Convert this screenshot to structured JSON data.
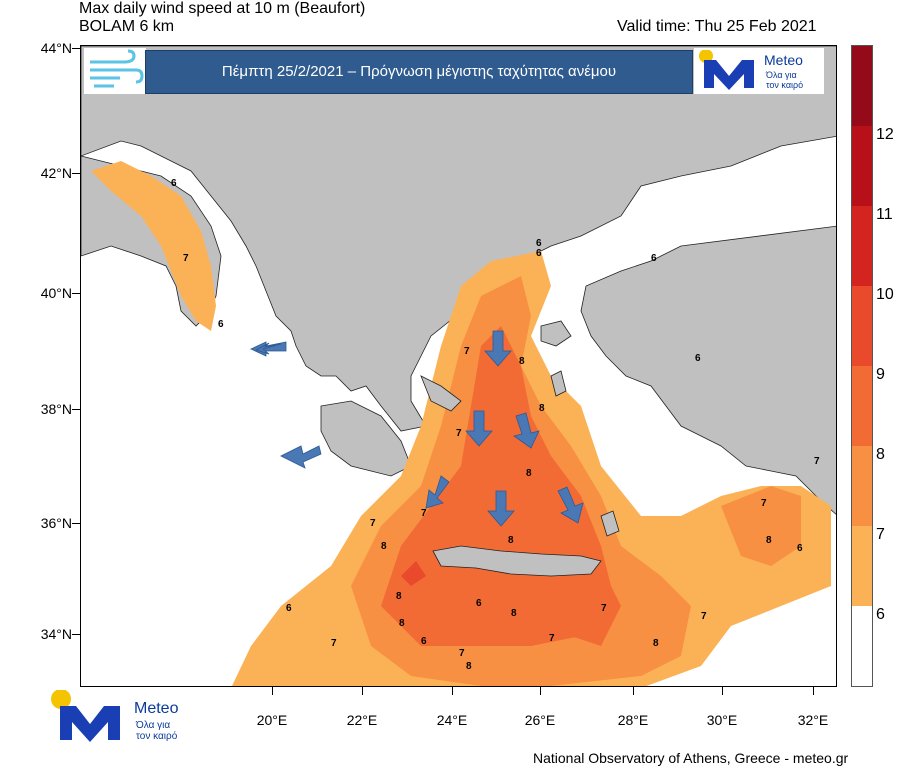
{
  "header": {
    "title_line1": "Max daily wind speed at 10 m (Beaufort)",
    "title_line2": "BOLAM 6 km",
    "valid_time": "Valid time: Thu 25 Feb 2021"
  },
  "banner": {
    "text": "Πέμπτη 25/2/2021 – Πρόγνωση μέγιστης ταχύτητας ανέμου"
  },
  "logo": {
    "word": "Meteo",
    "tagline_line1": "Όλα για",
    "tagline_line2": "τον καιρό",
    "icon": "meteo-m-logo-icon"
  },
  "axes": {
    "lat_labels": [
      "44°N",
      "42°N",
      "40°N",
      "38°N",
      "36°N",
      "34°N"
    ],
    "lon_labels": [
      "20°E",
      "22°E",
      "24°E",
      "26°E",
      "28°E",
      "30°E",
      "32°E"
    ]
  },
  "colorbar": {
    "labels": [
      "6",
      "7",
      "8",
      "9",
      "10",
      "11",
      "12"
    ],
    "colors": [
      "#ffffff",
      "#fbb257",
      "#f79042",
      "#f26b35",
      "#e84a2b",
      "#d42420",
      "#b81019",
      "#940a18"
    ]
  },
  "map": {
    "land_color": "#c0c0c0",
    "sea_color": "#ffffff",
    "contour_labels": [
      "6",
      "7",
      "6",
      "8",
      "7",
      "8",
      "6",
      "7",
      "8",
      "7",
      "8",
      "8",
      "7",
      "8",
      "6",
      "7",
      "8",
      "6",
      "7",
      "8",
      "6",
      "7",
      "8",
      "7",
      "8",
      "7",
      "6",
      "7",
      "8",
      "6",
      "7",
      "6",
      "6"
    ],
    "arrow_color": "#4a78b5"
  },
  "footer": {
    "credit": "National Observatory of Athens, Greece - meteo.gr"
  }
}
